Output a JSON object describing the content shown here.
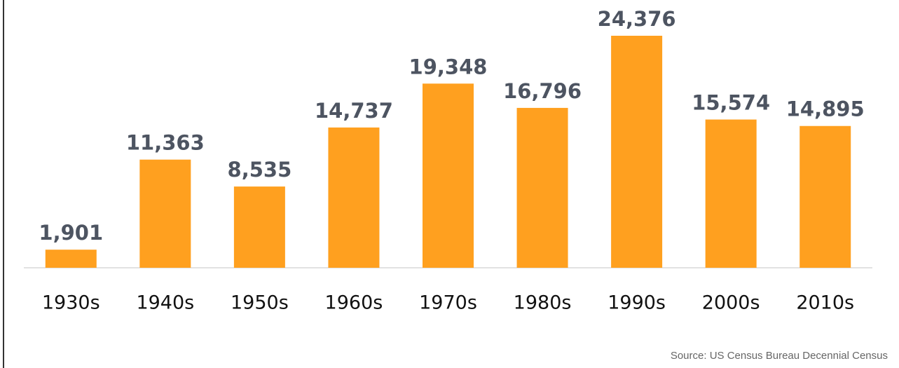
{
  "chart_data": {
    "type": "bar",
    "categories": [
      "1930s",
      "1940s",
      "1950s",
      "1960s",
      "1970s",
      "1980s",
      "1990s",
      "2000s",
      "2010s"
    ],
    "values": [
      1901,
      11363,
      8535,
      14737,
      19348,
      16796,
      24376,
      15574,
      14895
    ],
    "value_labels": [
      "1,901",
      "11,363",
      "8,535",
      "14,737",
      "19,348",
      "16,796",
      "24,376",
      "15,574",
      "14,895"
    ],
    "color": "#ffa01f",
    "source": "Source: US Census Bureau Decennial Census"
  }
}
